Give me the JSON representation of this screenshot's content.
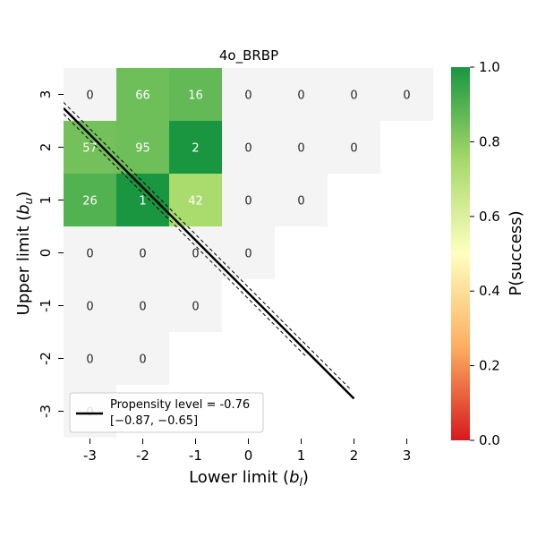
{
  "chart_data": {
    "type": "heatmap",
    "title": "4o_BRBP",
    "xlabel": "Lower limit (b_l)",
    "ylabel": "Upper limit (b_u)",
    "x_ticks": [
      "-3",
      "-2",
      "-1",
      "0",
      "1",
      "2",
      "3"
    ],
    "y_ticks": [
      "3",
      "2",
      "1",
      "0",
      "-1",
      "-2",
      "-3"
    ],
    "x_values": [
      -3,
      -2,
      -1,
      0,
      1,
      2,
      3
    ],
    "y_values": [
      3,
      2,
      1,
      0,
      -1,
      -2,
      -3
    ],
    "cells": [
      {
        "bl": -3,
        "bu": 3,
        "n": "0",
        "p": null
      },
      {
        "bl": -2,
        "bu": 3,
        "n": "66",
        "p": 0.85
      },
      {
        "bl": -1,
        "bu": 3,
        "n": "16",
        "p": 0.87
      },
      {
        "bl": 0,
        "bu": 3,
        "n": "0",
        "p": null
      },
      {
        "bl": 1,
        "bu": 3,
        "n": "0",
        "p": null
      },
      {
        "bl": 2,
        "bu": 3,
        "n": "0",
        "p": null
      },
      {
        "bl": 3,
        "bu": 3,
        "n": "0",
        "p": null
      },
      {
        "bl": -3,
        "bu": 2,
        "n": "57",
        "p": 0.84
      },
      {
        "bl": -2,
        "bu": 2,
        "n": "95",
        "p": 0.85
      },
      {
        "bl": -1,
        "bu": 2,
        "n": "2",
        "p": 1.0
      },
      {
        "bl": 0,
        "bu": 2,
        "n": "0",
        "p": null
      },
      {
        "bl": 1,
        "bu": 2,
        "n": "0",
        "p": null
      },
      {
        "bl": 2,
        "bu": 2,
        "n": "0",
        "p": null
      },
      {
        "bl": -3,
        "bu": 1,
        "n": "26",
        "p": 0.9
      },
      {
        "bl": -2,
        "bu": 1,
        "n": "1",
        "p": 1.0
      },
      {
        "bl": -1,
        "bu": 1,
        "n": "42",
        "p": 0.74
      },
      {
        "bl": 0,
        "bu": 1,
        "n": "0",
        "p": null
      },
      {
        "bl": 1,
        "bu": 1,
        "n": "0",
        "p": null
      },
      {
        "bl": -3,
        "bu": 0,
        "n": "0",
        "p": null
      },
      {
        "bl": -2,
        "bu": 0,
        "n": "0",
        "p": null
      },
      {
        "bl": -1,
        "bu": 0,
        "n": "0",
        "p": null
      },
      {
        "bl": 0,
        "bu": 0,
        "n": "0",
        "p": null
      },
      {
        "bl": -3,
        "bu": -1,
        "n": "0",
        "p": null
      },
      {
        "bl": -2,
        "bu": -1,
        "n": "0",
        "p": null
      },
      {
        "bl": -1,
        "bu": -1,
        "n": "0",
        "p": null
      },
      {
        "bl": -3,
        "bu": -2,
        "n": "0",
        "p": null
      },
      {
        "bl": -2,
        "bu": -2,
        "n": "0",
        "p": null
      },
      {
        "bl": -3,
        "bu": -3,
        "n": "0",
        "p": null
      }
    ],
    "empty_cell_color": "#f4f4f4",
    "colorbar": {
      "label": "P(success)",
      "min": 0.0,
      "max": 1.0,
      "ticks": [
        "0.0",
        "0.2",
        "0.4",
        "0.6",
        "0.8",
        "1.0"
      ],
      "tick_values": [
        0.0,
        0.2,
        0.4,
        0.6,
        0.8,
        1.0
      ],
      "colors": [
        "#d7191c",
        "#fdae61",
        "#ffffbf",
        "#a6d96a",
        "#1a9641"
      ]
    },
    "propensity_line": {
      "level": -0.76,
      "ci_low": -0.87,
      "ci_high": -0.65,
      "line_color": "#000000"
    },
    "legend": {
      "line1": "Propensity level = -0.76",
      "line2": "[−0.87, −0.65]",
      "position": "lower-left"
    }
  }
}
